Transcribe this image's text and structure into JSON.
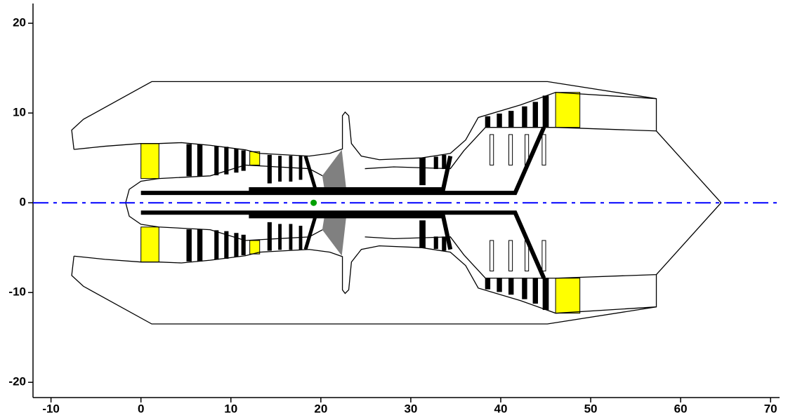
{
  "chart_data": {
    "type": "line",
    "mirror": true,
    "xlim": [
      -12,
      71
    ],
    "ylim": [
      -21.7,
      22.2
    ],
    "xticks": [
      -10,
      0,
      10,
      20,
      30,
      40,
      50,
      60,
      70
    ],
    "yticks": [
      -20,
      -10,
      0,
      10,
      20
    ],
    "series": [
      {
        "color": "#000000",
        "width": 1.3,
        "x": [
          -7.45,
          -7.7,
          -6.4,
          1.2,
          45.2,
          57.3,
          57.3
        ],
        "values": [
          5.94,
          8.1,
          9.3,
          13.5,
          13.5,
          11.6,
          8.0
        ]
      },
      {
        "color": "#000000",
        "width": 1.3,
        "x": [
          -7.45,
          -4,
          0,
          2
        ],
        "values": [
          5.94,
          6.3,
          6.6,
          6.6
        ]
      },
      {
        "color": "#000000",
        "width": 1.3,
        "x": [
          2,
          4.5,
          7.7,
          11.6,
          13.2,
          18.7,
          21.0,
          22.4,
          22.4,
          22.7,
          23.1,
          23.4,
          24.5,
          26.5,
          31.2,
          34.4,
          36.1,
          37.5,
          42.2,
          46.1,
          57.3
        ],
        "values": [
          6.6,
          6.7,
          6.4,
          5.9,
          5.5,
          5.2,
          5.5,
          6.0,
          9.7,
          10.1,
          9.7,
          6.6,
          5.2,
          4.8,
          5.0,
          5.5,
          7.0,
          9.5,
          10.9,
          12.3,
          11.6
        ]
      },
      {
        "color": "#000000",
        "width": 1.3,
        "x": [
          -1.7,
          -1.3,
          0,
          2,
          7.7,
          11.6,
          18.7,
          20.2
        ],
        "values": [
          0,
          1.5,
          2.4,
          2.7,
          3.0,
          4.2,
          3.8,
          3.0
        ]
      },
      {
        "color": "#000000",
        "width": 1.3,
        "x": [
          24.9,
          28.1,
          34.4,
          35.9,
          38.3,
          46.1,
          57.3,
          64.5
        ],
        "values": [
          3.8,
          4.0,
          3.8,
          5.8,
          8.4,
          8.4,
          8.0,
          0
        ]
      },
      {
        "color": "#808080",
        "width": 1,
        "fill": "#808080",
        "x": [
          20.2,
          22.3,
          22.8,
          20.5
        ],
        "values": [
          3.0,
          5.8,
          1.4,
          1.1
        ]
      },
      {
        "color": "#000000",
        "width": 6,
        "x": [
          0,
          41.6,
          44.8
        ],
        "values": [
          1.1,
          1.1,
          8.4
        ]
      },
      {
        "color": "#000000",
        "width": 6,
        "x": [
          12,
          33.6,
          34.4
        ],
        "values": [
          1.5,
          1.5,
          5.2
        ]
      },
      {
        "color": "#000000",
        "width": 5,
        "x": [
          18.3,
          19.4
        ],
        "values": [
          5.2,
          1.5
        ]
      }
    ],
    "blocks": [
      {
        "color": "#ffff00",
        "x": [
          0,
          2.0
        ],
        "y": [
          2.7,
          6.6
        ]
      },
      {
        "color": "#000000",
        "x": [
          5.1,
          5.6
        ],
        "y": [
          3.0,
          6.5
        ]
      },
      {
        "color": "#000000",
        "x": [
          6.3,
          6.8
        ],
        "y": [
          3.0,
          6.5
        ]
      },
      {
        "color": "#000000",
        "x": [
          8.2,
          8.6
        ],
        "y": [
          3.1,
          6.3
        ]
      },
      {
        "color": "#000000",
        "x": [
          9.3,
          9.7
        ],
        "y": [
          3.2,
          6.2
        ]
      },
      {
        "color": "#000000",
        "x": [
          10.4,
          10.8
        ],
        "y": [
          3.4,
          6.0
        ]
      },
      {
        "color": "#000000",
        "x": [
          11.2,
          11.6
        ],
        "y": [
          3.6,
          5.8
        ]
      },
      {
        "color": "#ffff00",
        "x": [
          12.1,
          13.2
        ],
        "y": [
          4.2,
          5.7
        ]
      },
      {
        "color": "#000000",
        "x": [
          14.1,
          14.5
        ],
        "y": [
          2.2,
          5.3
        ]
      },
      {
        "color": "#000000",
        "x": [
          15.3,
          15.6
        ],
        "y": [
          2.4,
          5.2
        ]
      },
      {
        "color": "#000000",
        "x": [
          16.5,
          16.8
        ],
        "y": [
          2.4,
          5.2
        ]
      },
      {
        "color": "#000000",
        "x": [
          17.6,
          17.9
        ],
        "y": [
          2.6,
          5.2
        ]
      },
      {
        "color": "#000000",
        "x": [
          31.0,
          31.6
        ],
        "y": [
          2.0,
          5.0
        ]
      },
      {
        "color": "#000000",
        "x": [
          32.6,
          33.0
        ],
        "y": [
          3.8,
          5.1
        ]
      },
      {
        "color": "#000000",
        "x": [
          33.5,
          33.9
        ],
        "y": [
          3.8,
          5.3
        ]
      },
      {
        "color": "#000000",
        "x": [
          38.3,
          38.8
        ],
        "y": [
          8.4,
          9.6
        ]
      },
      {
        "color": "#000000",
        "x": [
          39.6,
          40.1
        ],
        "y": [
          8.4,
          9.9
        ]
      },
      {
        "color": "#000000",
        "x": [
          40.9,
          41.4
        ],
        "y": [
          8.4,
          10.2
        ]
      },
      {
        "color": "#000000",
        "x": [
          42.4,
          42.9
        ],
        "y": [
          8.4,
          10.7
        ]
      },
      {
        "color": "#000000",
        "x": [
          43.6,
          44.1
        ],
        "y": [
          8.4,
          11.2
        ]
      },
      {
        "color": "#000000",
        "x": [
          44.7,
          45.3
        ],
        "y": [
          8.4,
          11.9
        ]
      },
      {
        "color": "#ffffff",
        "x": [
          38.8,
          39.2
        ],
        "y": [
          4.2,
          7.6
        ]
      },
      {
        "color": "#ffffff",
        "x": [
          40.9,
          41.3
        ],
        "y": [
          4.2,
          7.6
        ]
      },
      {
        "color": "#ffffff",
        "x": [
          42.7,
          43.1
        ],
        "y": [
          4.2,
          7.6
        ]
      },
      {
        "color": "#ffffff",
        "x": [
          44.6,
          45.0
        ],
        "y": [
          4.2,
          7.6
        ]
      },
      {
        "color": "#ffff00",
        "x": [
          46.1,
          48.8
        ],
        "y": [
          8.4,
          12.3
        ]
      }
    ],
    "centerline": {
      "color": "#0000ff",
      "x": [
        -12,
        71
      ],
      "values": [
        0,
        0
      ]
    },
    "point": {
      "color": "#00a000",
      "x": 19.2,
      "value": 0
    }
  }
}
